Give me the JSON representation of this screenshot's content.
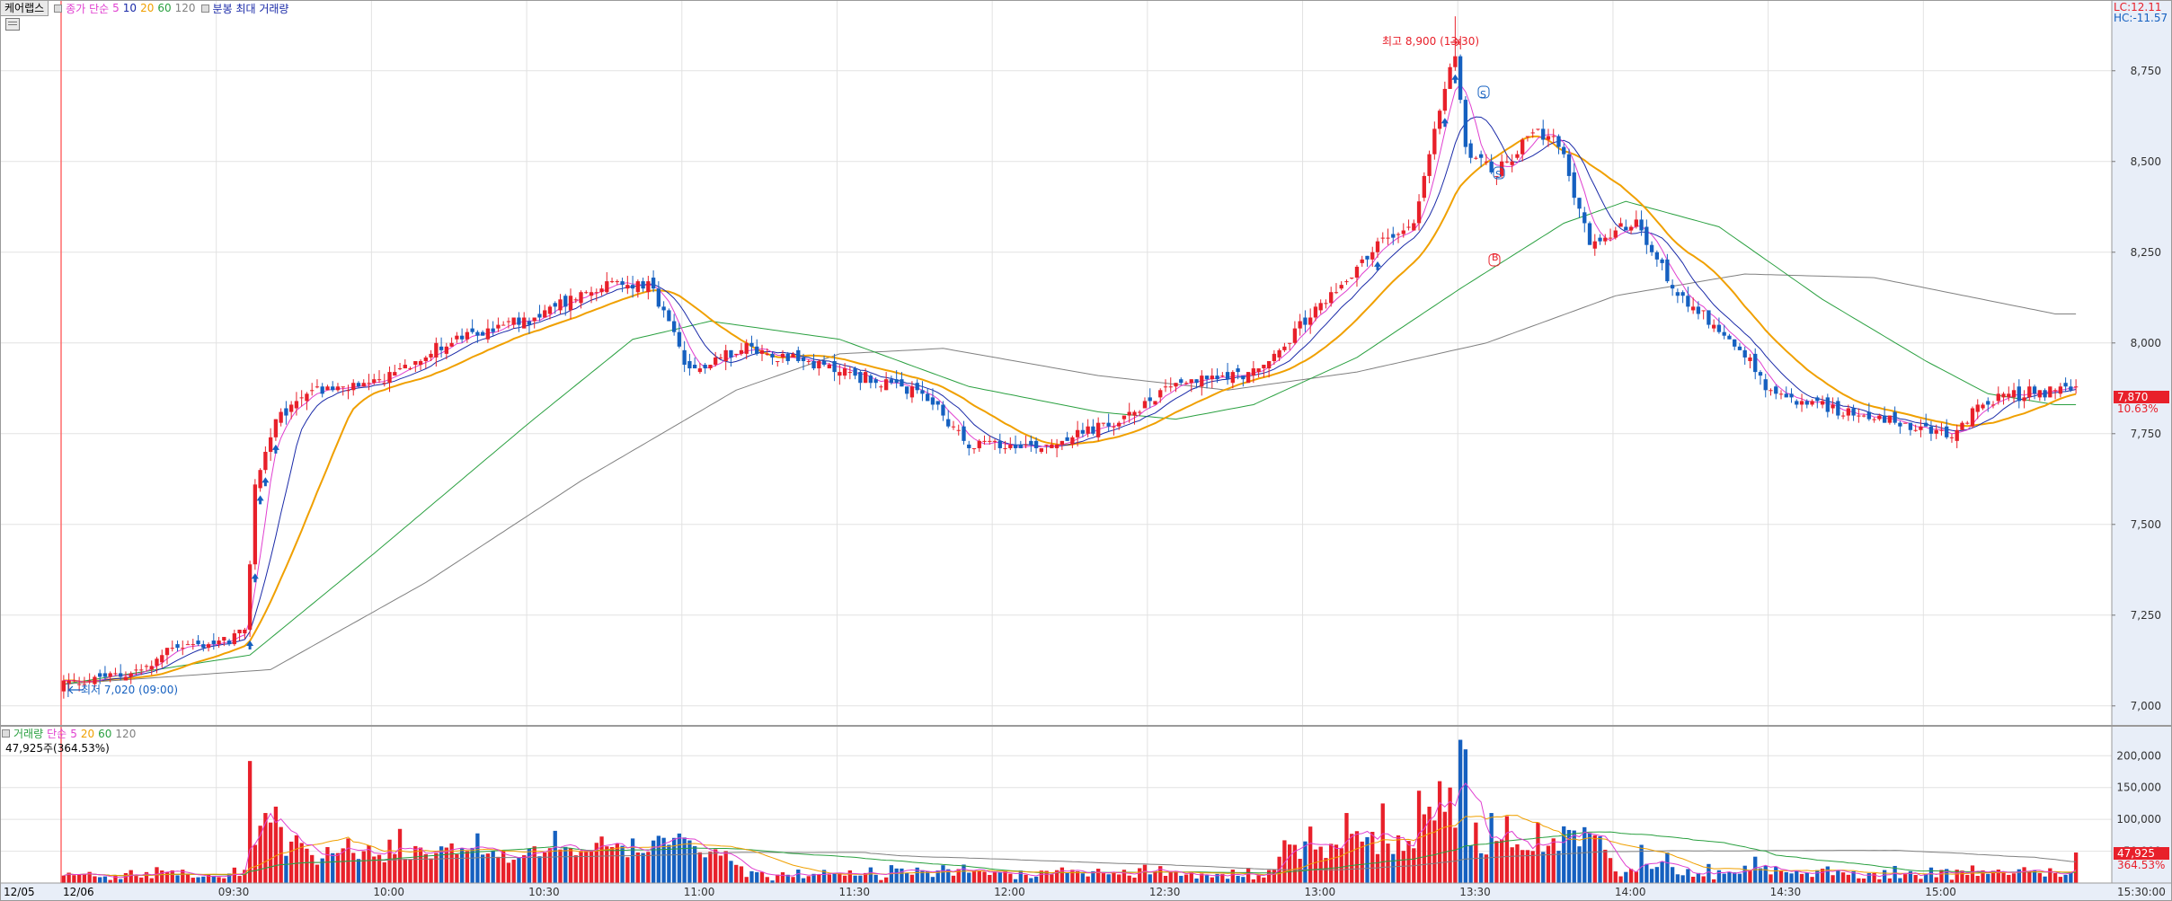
{
  "header": {
    "stock_name": "케어랩스",
    "price_ma_label": "종가 단순",
    "ma_periods": [
      "5",
      "10",
      "20",
      "60",
      "120"
    ],
    "period_label": "분봉 최대 거래량"
  },
  "price_axis_top": {
    "lc": "LC:12.11",
    "hc": "HC:-11.57"
  },
  "annotations": {
    "high": "최고 8,900 (13:30)",
    "low": "최저 7,020 (09:00)",
    "current_price": "7,870",
    "current_change": "10.63%",
    "signal_s": "S",
    "signal_b": "B"
  },
  "volume_panel": {
    "label": "거래량",
    "ma_label": "단순",
    "ma_periods": [
      "5",
      "20",
      "60",
      "120"
    ],
    "current": "47,925주(364.53%)",
    "current_badge": "47,925",
    "current_pct": "364.53%"
  },
  "colors": {
    "up": "#e8202a",
    "down": "#1560c0",
    "ma5": "#e040d0",
    "ma10": "#1a2aa8",
    "ma20": "#f0a000",
    "ma60": "#2aa040",
    "ma120": "#808080",
    "grid": "#e2e2e2",
    "axis_bg": "#e8eef8"
  },
  "chart_data": {
    "type": "candlestick",
    "price_ticks": [
      "8,750",
      "8,500",
      "8,250",
      "8,000",
      "7,750",
      "7,500",
      "7,250",
      "7,000"
    ],
    "price_tick_values": [
      8750,
      8500,
      8250,
      8000,
      7750,
      7500,
      7250,
      7000
    ],
    "ylim": [
      6950,
      8940
    ],
    "volume_ticks": [
      "200,000",
      "150,000",
      "100,000",
      "50,000"
    ],
    "volume_tick_values": [
      200000,
      150000,
      100000,
      50000
    ],
    "volume_ylim": [
      0,
      230000
    ],
    "date_labels": [
      "12/05",
      "12/06"
    ],
    "time_labels": [
      "09:30",
      "10:00",
      "10:30",
      "11:00",
      "11:30",
      "12:00",
      "12:30",
      "13:00",
      "13:30",
      "14:00",
      "14:30",
      "15:00",
      "15:30:00"
    ],
    "time_label_minutes": [
      30,
      60,
      90,
      120,
      150,
      180,
      210,
      240,
      270,
      300,
      330,
      360,
      390
    ],
    "session_minutes": 390,
    "open_price": 7060,
    "keypoints": [
      {
        "t": 0,
        "p": 7060
      },
      {
        "t": 10,
        "p": 7080
      },
      {
        "t": 18,
        "p": 7110
      },
      {
        "t": 22,
        "p": 7170
      },
      {
        "t": 30,
        "p": 7170
      },
      {
        "t": 36,
        "p": 7200
      },
      {
        "t": 38,
        "p": 7600
      },
      {
        "t": 42,
        "p": 7780
      },
      {
        "t": 48,
        "p": 7870
      },
      {
        "t": 60,
        "p": 7880
      },
      {
        "t": 75,
        "p": 8000
      },
      {
        "t": 90,
        "p": 8060
      },
      {
        "t": 105,
        "p": 8160
      },
      {
        "t": 114,
        "p": 8160
      },
      {
        "t": 118,
        "p": 8050
      },
      {
        "t": 122,
        "p": 7920
      },
      {
        "t": 132,
        "p": 7990
      },
      {
        "t": 150,
        "p": 7930
      },
      {
        "t": 168,
        "p": 7850
      },
      {
        "t": 176,
        "p": 7720
      },
      {
        "t": 190,
        "p": 7720
      },
      {
        "t": 205,
        "p": 7780
      },
      {
        "t": 215,
        "p": 7890
      },
      {
        "t": 232,
        "p": 7920
      },
      {
        "t": 245,
        "p": 8120
      },
      {
        "t": 255,
        "p": 8270
      },
      {
        "t": 262,
        "p": 8340
      },
      {
        "t": 268,
        "p": 8700
      },
      {
        "t": 270,
        "p": 8800
      },
      {
        "t": 272,
        "p": 8540
      },
      {
        "t": 278,
        "p": 8470
      },
      {
        "t": 285,
        "p": 8580
      },
      {
        "t": 290,
        "p": 8550
      },
      {
        "t": 296,
        "p": 8280
      },
      {
        "t": 305,
        "p": 8330
      },
      {
        "t": 312,
        "p": 8150
      },
      {
        "t": 318,
        "p": 8080
      },
      {
        "t": 325,
        "p": 7980
      },
      {
        "t": 332,
        "p": 7850
      },
      {
        "t": 340,
        "p": 7830
      },
      {
        "t": 355,
        "p": 7780
      },
      {
        "t": 366,
        "p": 7740
      },
      {
        "t": 372,
        "p": 7840
      },
      {
        "t": 380,
        "p": 7860
      },
      {
        "t": 385,
        "p": 7870
      }
    ],
    "ma60_keypoints": [
      {
        "t": 0,
        "p": 7060
      },
      {
        "t": 36,
        "p": 7140
      },
      {
        "t": 60,
        "p": 7420
      },
      {
        "t": 90,
        "p": 7780
      },
      {
        "t": 110,
        "p": 8010
      },
      {
        "t": 125,
        "p": 8060
      },
      {
        "t": 150,
        "p": 8010
      },
      {
        "t": 175,
        "p": 7880
      },
      {
        "t": 200,
        "p": 7810
      },
      {
        "t": 215,
        "p": 7790
      },
      {
        "t": 230,
        "p": 7830
      },
      {
        "t": 250,
        "p": 7960
      },
      {
        "t": 270,
        "p": 8150
      },
      {
        "t": 290,
        "p": 8330
      },
      {
        "t": 302,
        "p": 8390
      },
      {
        "t": 320,
        "p": 8320
      },
      {
        "t": 340,
        "p": 8120
      },
      {
        "t": 360,
        "p": 7950
      },
      {
        "t": 372,
        "p": 7860
      },
      {
        "t": 385,
        "p": 7830
      }
    ],
    "ma120_keypoints": [
      {
        "t": 0,
        "p": 7060
      },
      {
        "t": 40,
        "p": 7100
      },
      {
        "t": 70,
        "p": 7340
      },
      {
        "t": 100,
        "p": 7620
      },
      {
        "t": 130,
        "p": 7870
      },
      {
        "t": 150,
        "p": 7970
      },
      {
        "t": 170,
        "p": 7985
      },
      {
        "t": 200,
        "p": 7910
      },
      {
        "t": 225,
        "p": 7870
      },
      {
        "t": 250,
        "p": 7920
      },
      {
        "t": 275,
        "p": 8000
      },
      {
        "t": 300,
        "p": 8130
      },
      {
        "t": 325,
        "p": 8190
      },
      {
        "t": 350,
        "p": 8180
      },
      {
        "t": 385,
        "p": 8080
      }
    ],
    "volume_spikes": [
      {
        "t": 37,
        "v": 60000
      },
      {
        "t": 38,
        "v": 90000
      },
      {
        "t": 39,
        "v": 110000
      },
      {
        "t": 40,
        "v": 95000
      },
      {
        "t": 41,
        "v": 120000
      },
      {
        "t": 42,
        "v": 88000
      },
      {
        "t": 45,
        "v": 75000
      },
      {
        "t": 55,
        "v": 70000
      },
      {
        "t": 65,
        "v": 85000
      },
      {
        "t": 80,
        "v": 78000
      },
      {
        "t": 95,
        "v": 82000
      },
      {
        "t": 110,
        "v": 70000
      },
      {
        "t": 122,
        "v": 58000
      },
      {
        "t": 238,
        "v": 60000
      },
      {
        "t": 248,
        "v": 110000
      },
      {
        "t": 255,
        "v": 125000
      },
      {
        "t": 262,
        "v": 145000
      },
      {
        "t": 266,
        "v": 160000
      },
      {
        "t": 268,
        "v": 150000
      },
      {
        "t": 270,
        "v": 225000
      },
      {
        "t": 271,
        "v": 210000
      },
      {
        "t": 273,
        "v": 95000
      },
      {
        "t": 276,
        "v": 110000
      },
      {
        "t": 279,
        "v": 105000
      },
      {
        "t": 285,
        "v": 95000
      },
      {
        "t": 296,
        "v": 75000
      },
      {
        "t": 305,
        "v": 60000
      },
      {
        "t": 389,
        "v": 47925
      }
    ],
    "buy_arrows": [
      {
        "t": 36
      },
      {
        "t": 37
      },
      {
        "t": 38
      },
      {
        "t": 39
      },
      {
        "t": 41
      },
      {
        "t": 254
      },
      {
        "t": 267
      },
      {
        "t": 269
      }
    ],
    "xlabel": "",
    "ylabel": ""
  }
}
